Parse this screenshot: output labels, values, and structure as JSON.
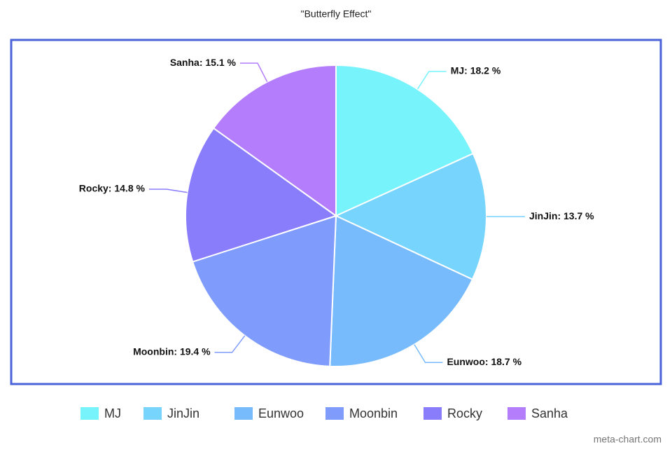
{
  "chart_data": {
    "type": "pie",
    "title": "\"Butterfly Effect\"",
    "categories": [
      "MJ",
      "JinJin",
      "Eunwoo",
      "Moonbin",
      "Rocky",
      "Sanha"
    ],
    "values": [
      18.2,
      13.7,
      18.7,
      19.4,
      14.8,
      15.1
    ],
    "value_labels": [
      "MJ: 18.2 %",
      "JinJin: 13.7 %",
      "Eunwoo: 18.7 %",
      "Moonbin: 19.4 %",
      "Rocky: 14.8 %",
      "Sanha: 15.1 %"
    ],
    "colors": [
      "#77f3fc",
      "#77d4fc",
      "#77bbfc",
      "#7f9cfc",
      "#8a7dfc",
      "#b37dfc"
    ],
    "legend": "bottom"
  },
  "watermark": "meta-chart.com"
}
